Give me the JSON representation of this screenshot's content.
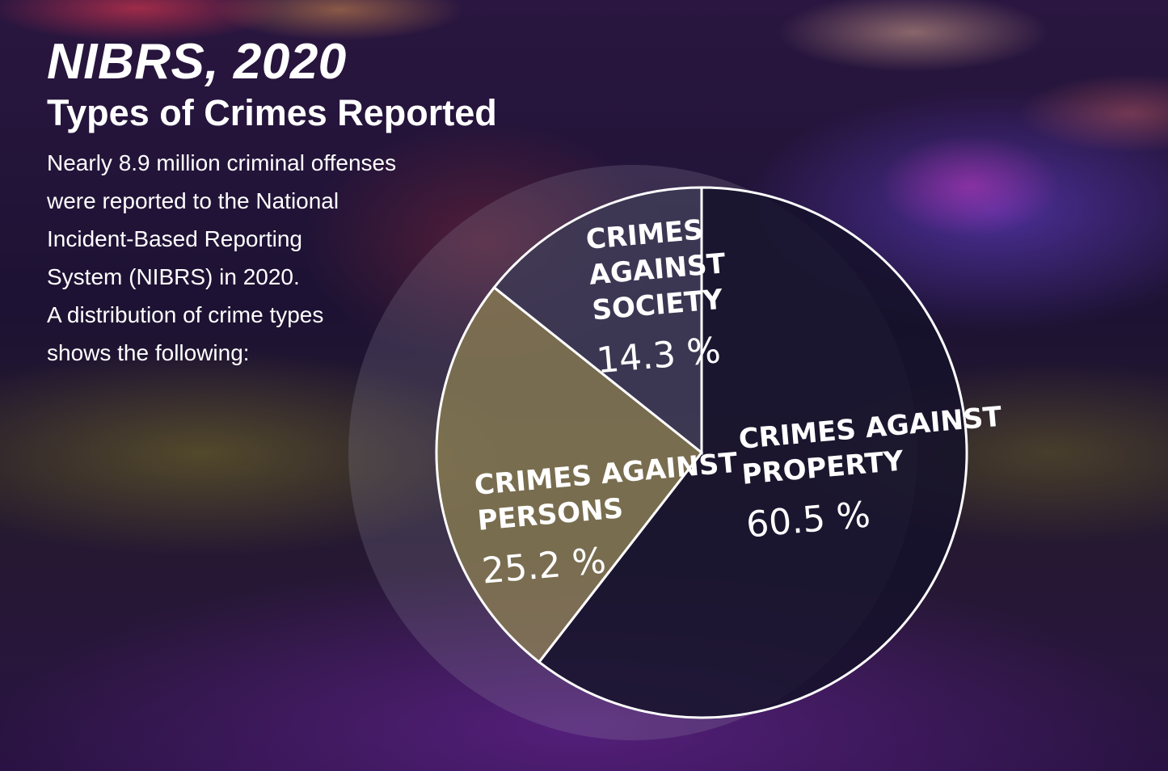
{
  "header": {
    "title": "NIBRS, 2020",
    "subtitle": "Types of Crimes Reported"
  },
  "description_lines": [
    "Nearly 8.9 million criminal offenses",
    "were reported to the National",
    "Incident-Based Reporting",
    "System (NIBRS) in 2020.",
    "A distribution of crime types",
    "shows the following:"
  ],
  "chart_data": {
    "type": "pie",
    "title": "",
    "slices": [
      {
        "label_lines": [
          "CRIMES AGAINST",
          "PROPERTY"
        ],
        "value": 60.5,
        "value_label": "60.5 %",
        "color": "#15122a"
      },
      {
        "label_lines": [
          "CRIMES AGAINST",
          "PERSONS"
        ],
        "value": 25.2,
        "value_label": "25.2 %",
        "color": "#8a7d52"
      },
      {
        "label_lines": [
          "CRIMES",
          "AGAINST",
          "SOCIETY"
        ],
        "value": 14.3,
        "value_label": "14.3 %",
        "color": "#3c3a55"
      }
    ],
    "start": "top",
    "direction": "clockwise",
    "outline_color": "#ffffff"
  }
}
